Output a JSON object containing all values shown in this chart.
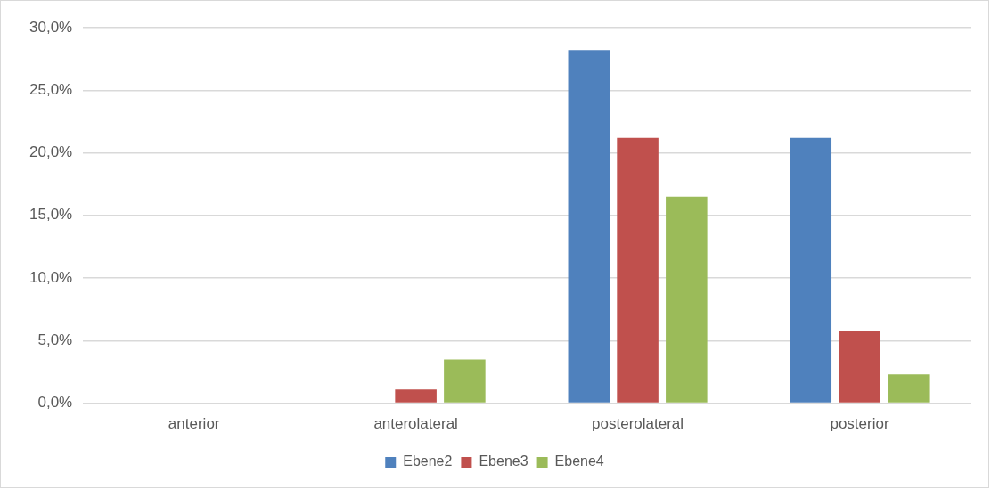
{
  "chart_data": {
    "type": "bar",
    "categories": [
      "anterior",
      "anterolateral",
      "posterolateral",
      "posterior"
    ],
    "series": [
      {
        "name": "Ebene2",
        "color": "#4f81bd",
        "values": [
          0,
          0,
          28.2,
          21.2
        ]
      },
      {
        "name": "Ebene3",
        "color": "#c0504d",
        "values": [
          0,
          1.1,
          21.2,
          5.8
        ]
      },
      {
        "name": "Ebene4",
        "color": "#9bbb59",
        "values": [
          0,
          3.5,
          16.5,
          2.3
        ]
      }
    ],
    "ylim": [
      0,
      30
    ],
    "yticks": [
      {
        "value": 0,
        "label": "0,0%"
      },
      {
        "value": 5,
        "label": "5,0%"
      },
      {
        "value": 10,
        "label": "10,0%"
      },
      {
        "value": 15,
        "label": "15,0%"
      },
      {
        "value": 20,
        "label": "20,0%"
      },
      {
        "value": 25,
        "label": "25,0%"
      },
      {
        "value": 30,
        "label": "30,0%"
      }
    ],
    "grid": "y",
    "legend": "bottom"
  }
}
